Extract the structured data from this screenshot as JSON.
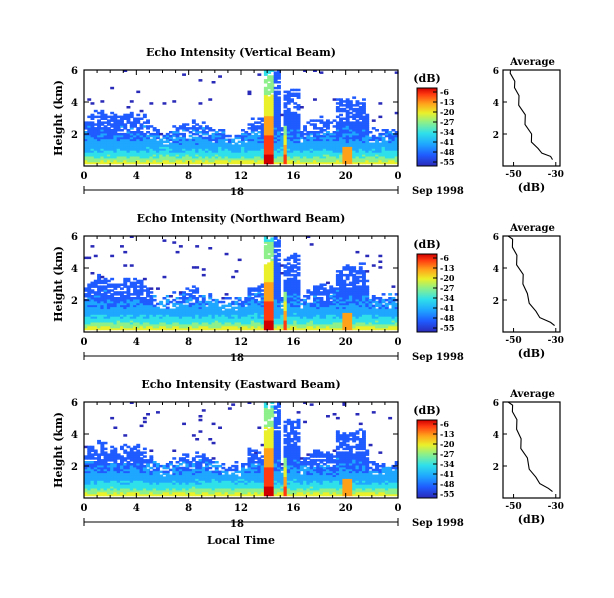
{
  "chart_data": [
    {
      "type": "heatmap",
      "title": "Echo Intensity (Vertical Beam)",
      "ylabel": "Height (km)",
      "x_ticks": [
        "0",
        "4",
        "8",
        "12",
        "16",
        "20",
        "0"
      ],
      "y_ticks": [
        "2",
        "4",
        "6"
      ],
      "xlim": [
        0,
        24
      ],
      "ylim": [
        0,
        6
      ],
      "date_day": "18",
      "date_suffix": "Sep 1998",
      "colorbar": {
        "unit": "(dB)",
        "levels": [
          "-6",
          "-13",
          "-20",
          "-27",
          "-34",
          "-41",
          "-48",
          "-55"
        ]
      },
      "profile": {
        "title": "Average",
        "xlabel": "(dB)",
        "x_ticks": [
          "-50",
          "-30"
        ],
        "xlim": [
          -55,
          -28
        ],
        "ylim": [
          0,
          6
        ],
        "points": [
          [
            -31,
            0.4
          ],
          [
            -33,
            0.6
          ],
          [
            -36,
            0.8
          ],
          [
            -39,
            1.1
          ],
          [
            -41,
            1.5
          ],
          [
            -42,
            2.0
          ],
          [
            -44,
            2.6
          ],
          [
            -45,
            3.2
          ],
          [
            -47,
            3.8
          ],
          [
            -48,
            4.4
          ],
          [
            -49,
            4.9
          ],
          [
            -50,
            5.3
          ],
          [
            -51,
            5.8
          ],
          [
            -52,
            6.0
          ]
        ]
      }
    },
    {
      "type": "heatmap",
      "title": "Echo Intensity (Northward Beam)",
      "ylabel": "Height (km)",
      "x_ticks": [
        "0",
        "4",
        "8",
        "12",
        "16",
        "20",
        "0"
      ],
      "y_ticks": [
        "2",
        "4",
        "6"
      ],
      "xlim": [
        0,
        24
      ],
      "ylim": [
        0,
        6
      ],
      "date_day": "18",
      "date_suffix": "Sep 1998",
      "colorbar": {
        "unit": "(dB)",
        "levels": [
          "-6",
          "-13",
          "-20",
          "-27",
          "-34",
          "-41",
          "-48",
          "-55"
        ]
      },
      "profile": {
        "title": "Average",
        "xlabel": "(dB)",
        "x_ticks": [
          "-50",
          "-30"
        ],
        "xlim": [
          -55,
          -28
        ],
        "ylim": [
          0,
          6
        ],
        "points": [
          [
            -30,
            0.4
          ],
          [
            -33,
            0.6
          ],
          [
            -37,
            0.9
          ],
          [
            -40,
            1.3
          ],
          [
            -42,
            1.8
          ],
          [
            -44,
            2.4
          ],
          [
            -45,
            3.0
          ],
          [
            -46,
            3.6
          ],
          [
            -48,
            4.2
          ],
          [
            -49,
            4.8
          ],
          [
            -50,
            5.3
          ],
          [
            -51,
            5.8
          ],
          [
            -52,
            6.0
          ]
        ]
      }
    },
    {
      "type": "heatmap",
      "title": "Echo Intensity (Eastward Beam)",
      "ylabel": "Height (km)",
      "xlabel": "Local Time",
      "x_ticks": [
        "0",
        "4",
        "8",
        "12",
        "16",
        "20",
        "0"
      ],
      "y_ticks": [
        "2",
        "4",
        "6"
      ],
      "xlim": [
        0,
        24
      ],
      "ylim": [
        0,
        6
      ],
      "date_day": "18",
      "date_suffix": "Sep 1998",
      "colorbar": {
        "unit": "(dB)",
        "levels": [
          "-6",
          "-13",
          "-20",
          "-27",
          "-34",
          "-41",
          "-48",
          "-55"
        ]
      },
      "profile": {
        "title": "Average",
        "xlabel": "(dB)",
        "x_ticks": [
          "-50",
          "-30"
        ],
        "xlim": [
          -55,
          -28
        ],
        "ylim": [
          0,
          6
        ],
        "points": [
          [
            -31,
            0.4
          ],
          [
            -34,
            0.6
          ],
          [
            -37,
            0.9
          ],
          [
            -40,
            1.3
          ],
          [
            -42,
            1.8
          ],
          [
            -44,
            2.5
          ],
          [
            -46,
            3.1
          ],
          [
            -47,
            3.7
          ],
          [
            -48,
            4.3
          ],
          [
            -49,
            4.9
          ],
          [
            -50,
            5.4
          ],
          [
            -51,
            5.8
          ],
          [
            -52,
            6.0
          ]
        ]
      }
    }
  ],
  "colors": {
    "colormap": [
      "#2a2ab8",
      "#1f5bff",
      "#1fa7ff",
      "#2fe0ea",
      "#8df08a",
      "#eaf02a",
      "#ffa21a",
      "#ff3a10",
      "#d10000"
    ]
  }
}
